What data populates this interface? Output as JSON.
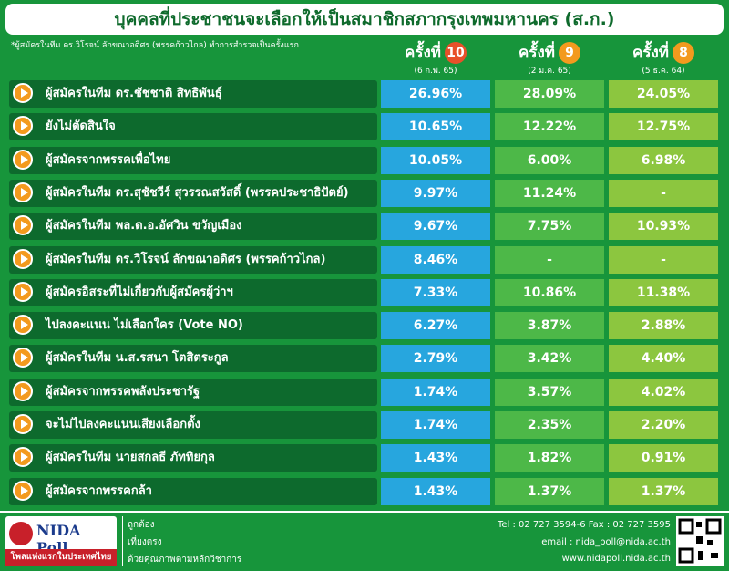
{
  "header": {
    "title": "บุคคลที่ประชาชนจะเลือกให้เป็นสมาชิกสภากรุงเทพมหานคร (ส.ก.)",
    "note": "*ผู้สมัครในทีม ดร.วิโรจน์ ลักขณาอดิศร (พรรคก้าวไกล) ทำการสำรวจเป็นครั้งแรก"
  },
  "columns": [
    {
      "label": "ครั้งที่",
      "number": "10",
      "date": "(6 ก.พ. 65)"
    },
    {
      "label": "ครั้งที่",
      "number": "9",
      "date": "(2 ม.ค. 65)"
    },
    {
      "label": "ครั้งที่",
      "number": "8",
      "date": "(5 ธ.ค. 64)"
    }
  ],
  "rows": [
    {
      "label": "ผู้สมัครในทีม ดร.ชัชชาติ สิทธิพันธุ์",
      "values": [
        "26.96%",
        "28.09%",
        "24.05%"
      ]
    },
    {
      "label": "ยังไม่ตัดสินใจ",
      "values": [
        "10.65%",
        "12.22%",
        "12.75%"
      ]
    },
    {
      "label": "ผู้สมัครจากพรรคเพื่อไทย",
      "values": [
        "10.05%",
        "6.00%",
        "6.98%"
      ]
    },
    {
      "label": "ผู้สมัครในทีม ดร.สุชัชวีร์ สุวรรณสวัสดิ์ (พรรคประชาธิปัตย์)",
      "values": [
        "9.97%",
        "11.24%",
        "-"
      ]
    },
    {
      "label": "ผู้สมัครในทีม พล.ต.อ.อัศวิน ขวัญเมือง",
      "values": [
        "9.67%",
        "7.75%",
        "10.93%"
      ]
    },
    {
      "label": "ผู้สมัครในทีม ดร.วิโรจน์ ลักขณาอดิศร (พรรคก้าวไกล)",
      "values": [
        "8.46%",
        "-",
        "-"
      ]
    },
    {
      "label": "ผู้สมัครอิสระที่ไม่เกี่ยวกับผู้สมัครผู้ว่าฯ",
      "values": [
        "7.33%",
        "10.86%",
        "11.38%"
      ]
    },
    {
      "label": "ไปลงคะแนน ไม่เลือกใคร (Vote NO)",
      "values": [
        "6.27%",
        "3.87%",
        "2.88%"
      ]
    },
    {
      "label": "ผู้สมัครในทีม น.ส.รสนา โตสิตระกูล",
      "values": [
        "2.79%",
        "3.42%",
        "4.40%"
      ]
    },
    {
      "label": "ผู้สมัครจากพรรคพลังประชารัฐ",
      "values": [
        "1.74%",
        "3.57%",
        "4.02%"
      ]
    },
    {
      "label": "จะไม่ไปลงคะแนนเสียงเลือกตั้ง",
      "values": [
        "1.74%",
        "2.35%",
        "2.20%"
      ]
    },
    {
      "label": "ผู้สมัครในทีม นายสกลธี ภัททิยกุล",
      "values": [
        "1.43%",
        "1.82%",
        "0.91%"
      ]
    },
    {
      "label": "ผู้สมัครจากพรรคกล้า",
      "values": [
        "1.43%",
        "1.37%",
        "1.37%"
      ]
    }
  ],
  "footer": {
    "logo": "NIDA Poll",
    "slogan": "โพลแห่งแรกในประเทศไทย",
    "motto": [
      "ถูกต้อง",
      "เที่ยงตรง",
      "ด้วยคุณภาพตามหลักวิชาการ"
    ],
    "contact": [
      "Tel : 02 727 3594-6 Fax : 02 727 3595",
      "email : nida_poll@nida.ac.th",
      "www.nidapoll.nida.ac.th"
    ]
  }
}
